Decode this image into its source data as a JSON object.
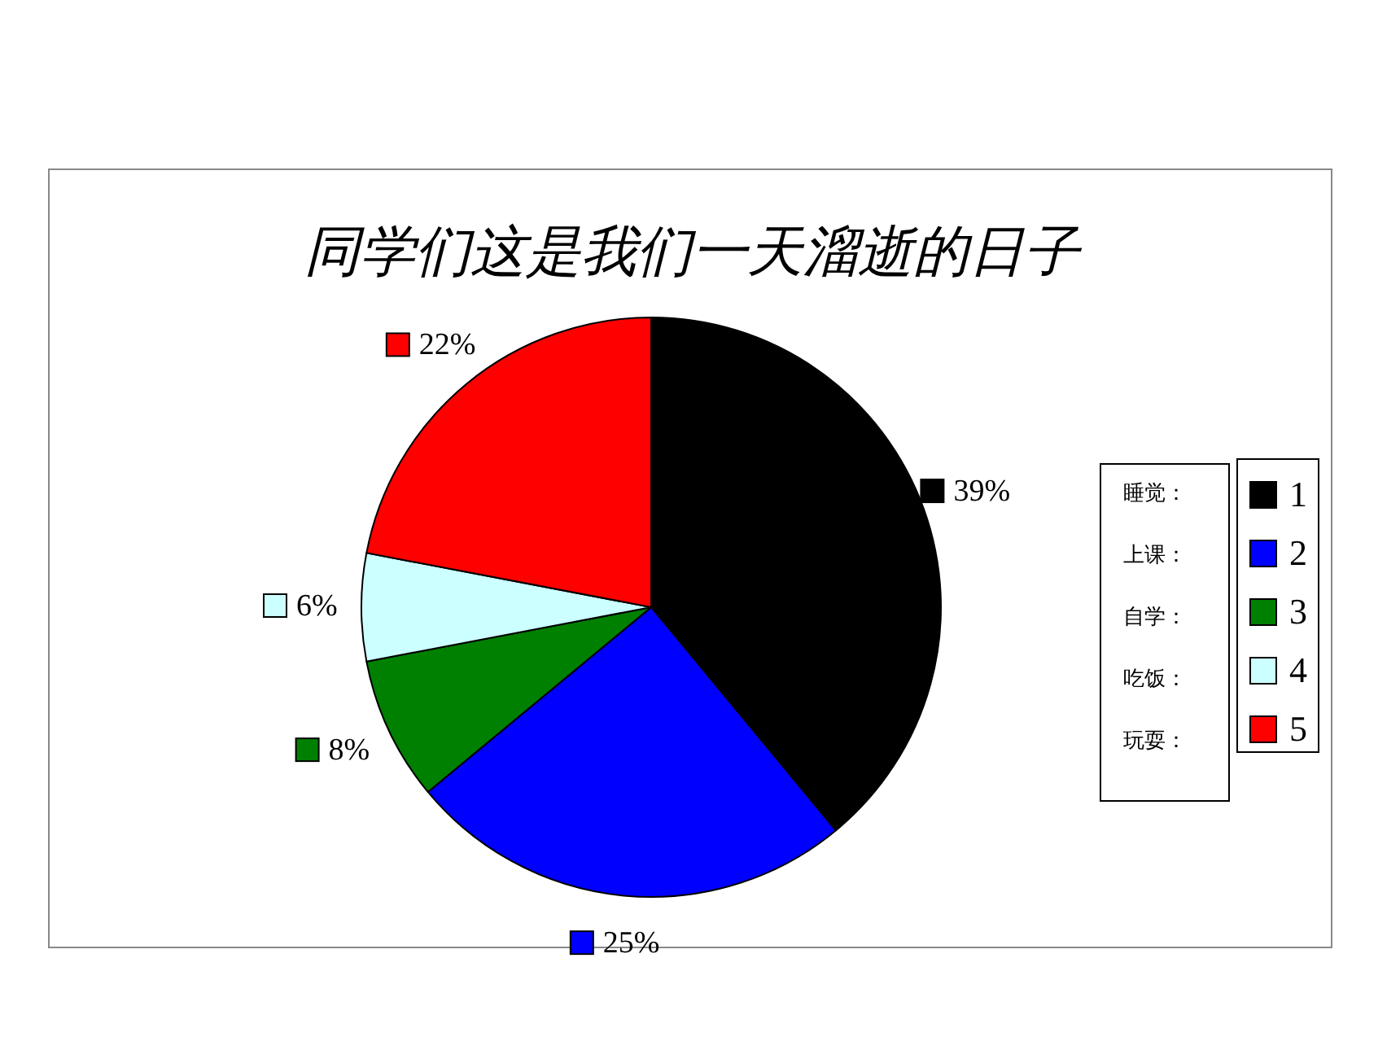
{
  "chart_data": {
    "type": "pie",
    "title": "同学们这是我们一天溜逝的日子",
    "categories": [
      "1",
      "2",
      "3",
      "4",
      "5"
    ],
    "values": [
      39,
      25,
      8,
      6,
      22
    ],
    "value_labels": [
      "39%",
      "25%",
      "8%",
      "6%",
      "22%"
    ],
    "colors": [
      "#000000",
      "#0000ff",
      "#008000",
      "#ccffff",
      "#ff0000"
    ],
    "legend": "right",
    "annotations": [
      "睡觉：",
      "上课：",
      "自学：",
      "吃饭：",
      "玩耍："
    ]
  }
}
